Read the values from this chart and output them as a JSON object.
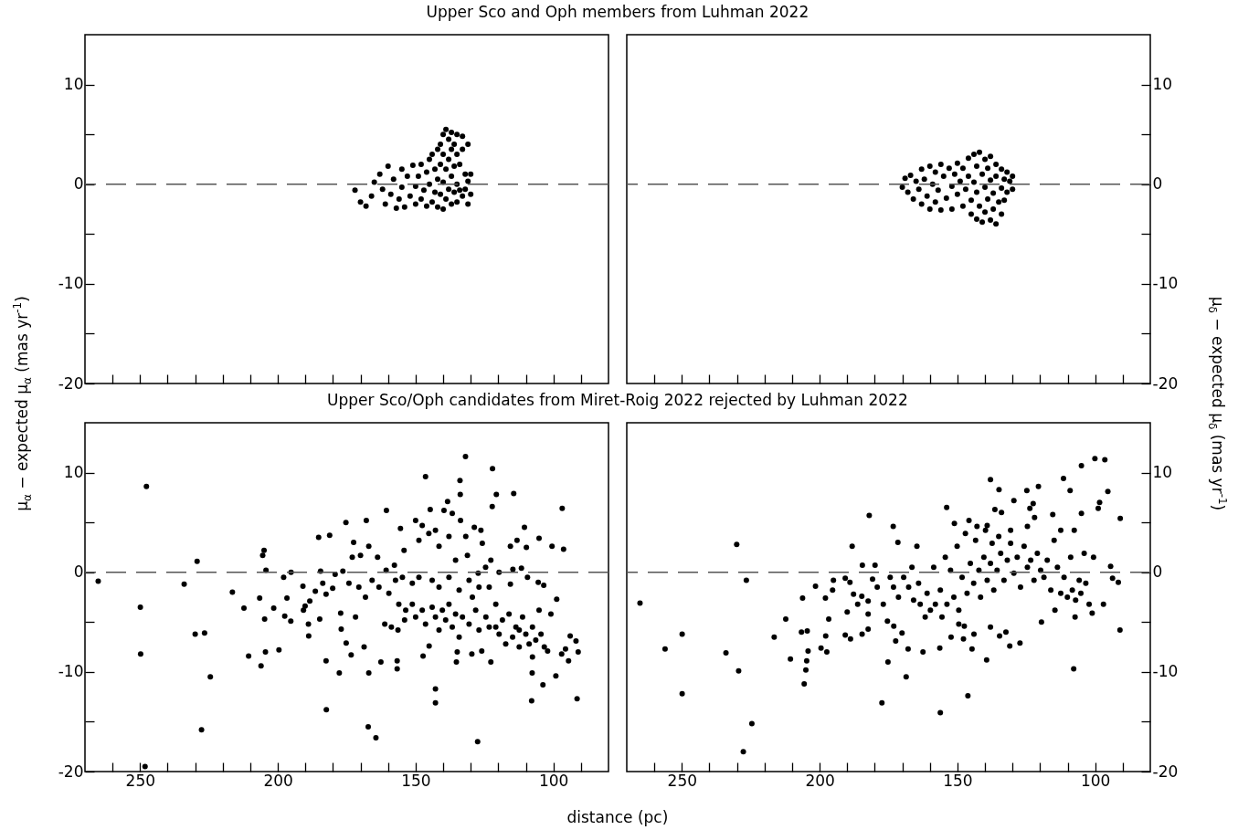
{
  "chart_data": [
    {
      "type": "scatter",
      "title": "Upper Sco and Oph members from Luhman 2022",
      "ylabel": "μ$_{α}$ − expected μ$_{α}$ (mas yr$^{-1}$)",
      "xlim": [
        270,
        80
      ],
      "ylim": [
        -20,
        15
      ],
      "xticks": [
        {
          "value": 260,
          "label": null
        },
        250,
        {
          "value": 240,
          "label": null
        },
        {
          "value": 230,
          "label": null
        },
        {
          "value": 220,
          "label": null
        },
        {
          "value": 210,
          "label": null
        },
        200,
        {
          "value": 190,
          "label": null
        },
        {
          "value": 180,
          "label": null
        },
        {
          "value": 170,
          "label": null
        },
        {
          "value": 160,
          "label": null
        },
        150,
        {
          "value": 140,
          "label": null
        },
        {
          "value": 130,
          "label": null
        },
        {
          "value": 120,
          "label": null
        },
        {
          "value": 110,
          "label": null
        },
        100,
        {
          "value": 90,
          "label": null
        }
      ],
      "yticks": [
        -20,
        {
          "value": -15,
          "label": null
        },
        -10,
        {
          "value": -5,
          "label": null
        },
        0,
        {
          "value": 5,
          "label": null
        },
        10
      ],
      "tick_labels": "y",
      "marker": "circle",
      "ref_lines": [
        {
          "axis": "y",
          "value": 0,
          "line_style": "dashed",
          "color": "#555555"
        }
      ],
      "series": [
        {
          "color": "#000000",
          "x": [
            172,
            170,
            168,
            166,
            165,
            163,
            162,
            161,
            160,
            159,
            158,
            157,
            156,
            155,
            155,
            154,
            153,
            152,
            151,
            150,
            150,
            149,
            148,
            148,
            147,
            146,
            146,
            145,
            145,
            144,
            144,
            143,
            143,
            142,
            142,
            142,
            141,
            141,
            141,
            140,
            140,
            140,
            140,
            139,
            139,
            139,
            138,
            138,
            138,
            137,
            137,
            137,
            137,
            136,
            136,
            136,
            135,
            135,
            135,
            135,
            134,
            134,
            133,
            133,
            132,
            132,
            131,
            131,
            130,
            130,
            131,
            133
          ],
          "values": [
            -0.6,
            -1.8,
            -2.2,
            -1.2,
            0.2,
            1,
            -0.5,
            -2,
            1.8,
            -1,
            0.5,
            -2.4,
            -1.5,
            1.5,
            -0.3,
            -2.3,
            0.8,
            -1.2,
            1.9,
            -0.2,
            -2,
            0.8,
            2,
            -1.5,
            -0.6,
            1.2,
            -2.2,
            2.5,
            0,
            3,
            -1.8,
            1.5,
            -0.8,
            3.5,
            0.5,
            -2.3,
            4,
            2,
            -1,
            5,
            3,
            0.2,
            -2.5,
            5.5,
            1.5,
            -1.5,
            4.5,
            2.5,
            -0.5,
            5.2,
            3.5,
            0.8,
            -2,
            4,
            1.8,
            -0.8,
            5,
            3,
            0,
            -1.8,
            2,
            -0.6,
            3.5,
            -1.2,
            1,
            -0.5,
            0.3,
            4,
            1,
            -1,
            -2,
            4.8
          ]
        }
      ]
    },
    {
      "type": "scatter",
      "ylabel": "μ$_{δ}$ − expected μ$_{δ}$ (mas yr$^{-1}$)",
      "xlim": [
        270,
        80
      ],
      "ylim": [
        -20,
        15
      ],
      "xticks": [
        {
          "value": 260,
          "label": null
        },
        250,
        {
          "value": 240,
          "label": null
        },
        {
          "value": 230,
          "label": null
        },
        {
          "value": 220,
          "label": null
        },
        {
          "value": 210,
          "label": null
        },
        200,
        {
          "value": 190,
          "label": null
        },
        {
          "value": 180,
          "label": null
        },
        {
          "value": 170,
          "label": null
        },
        {
          "value": 160,
          "label": null
        },
        150,
        {
          "value": 140,
          "label": null
        },
        {
          "value": 130,
          "label": null
        },
        {
          "value": 120,
          "label": null
        },
        {
          "value": 110,
          "label": null
        },
        100,
        {
          "value": 90,
          "label": null
        }
      ],
      "yticks": [
        -20,
        {
          "value": -15,
          "label": null
        },
        -10,
        {
          "value": -5,
          "label": null
        },
        0,
        {
          "value": 5,
          "label": null
        },
        10
      ],
      "tick_labels": "y",
      "marker": "circle",
      "ref_lines": [
        {
          "axis": "y",
          "value": 0,
          "line_style": "dashed",
          "color": "#555555"
        }
      ],
      "series": [
        {
          "color": "#000000",
          "x": [
            170,
            169,
            168,
            167,
            166,
            165,
            164,
            163,
            163,
            162,
            161,
            160,
            160,
            159,
            158,
            158,
            157,
            156,
            156,
            155,
            154,
            153,
            152,
            152,
            151,
            150,
            150,
            149,
            148,
            148,
            147,
            146,
            146,
            145,
            145,
            144,
            144,
            143,
            143,
            143,
            142,
            142,
            141,
            141,
            140,
            140,
            140,
            139,
            139,
            138,
            138,
            138,
            137,
            137,
            136,
            136,
            136,
            135,
            134,
            134,
            134,
            133,
            133,
            132,
            132,
            131,
            130,
            130
          ],
          "values": [
            -0.3,
            0.6,
            -0.8,
            0.9,
            -1.5,
            0.3,
            -0.5,
            1.5,
            -2,
            0.5,
            -1.2,
            1.8,
            -2.5,
            0,
            1.2,
            -1.8,
            -0.6,
            2,
            -2.6,
            0.8,
            -1.4,
            1.6,
            -0.2,
            -2.5,
            1,
            2.1,
            -1,
            0.3,
            -2.2,
            1.6,
            -0.5,
            2.6,
            0.8,
            -1.6,
            -3,
            3,
            0.2,
            1.8,
            -0.8,
            -3.5,
            3.2,
            -2.2,
            1,
            -3.8,
            2.5,
            -0.3,
            -2.8,
            1.6,
            -1.5,
            2.8,
            0.4,
            -3.6,
            -0.9,
            -2.5,
            2,
            0.8,
            -4,
            -1.8,
            1.5,
            -0.4,
            -3,
            0.5,
            -1.6,
            1.2,
            -0.8,
            0.3,
            0.8,
            -0.5
          ]
        }
      ]
    },
    {
      "type": "scatter",
      "title": "Upper Sco/Oph candidates from Miret-Roig 2022 rejected by Luhman 2022",
      "xlabel": "distance (pc)",
      "xlim": [
        270,
        80
      ],
      "ylim": [
        -20,
        15
      ],
      "xticks": [
        {
          "value": 260,
          "label": null
        },
        250,
        {
          "value": 240,
          "label": null
        },
        {
          "value": 230,
          "label": null
        },
        {
          "value": 220,
          "label": null
        },
        {
          "value": 210,
          "label": null
        },
        200,
        {
          "value": 190,
          "label": null
        },
        {
          "value": 180,
          "label": null
        },
        {
          "value": 170,
          "label": null
        },
        {
          "value": 160,
          "label": null
        },
        150,
        {
          "value": 140,
          "label": null
        },
        {
          "value": 130,
          "label": null
        },
        {
          "value": 120,
          "label": null
        },
        {
          "value": 110,
          "label": null
        },
        100,
        {
          "value": 90,
          "label": null
        }
      ],
      "yticks": [
        -20,
        {
          "value": -15,
          "label": null
        },
        -10,
        {
          "value": -5,
          "label": null
        },
        0,
        {
          "value": 5,
          "label": null
        },
        10
      ],
      "marker": "circle",
      "ref_lines": [
        {
          "axis": "y",
          "value": 0,
          "line_style": "dashed",
          "color": "#555555"
        }
      ],
      "series": [
        {
          "color": "#000000",
          "x": [
            265.2,
            247.7,
            249.9,
            249.8,
            248.2,
            229.3,
            234,
            230,
            226.6,
            224.5,
            227.7,
            216.5,
            212.3,
            210.6,
            206.6,
            206.1,
            205.5,
            205,
            204.3,
            204.8,
            204.5,
            201.5,
            199.6,
            197.9,
            197.5,
            196.7,
            195.3,
            195.2,
            190.9,
            190.7,
            190.1,
            188.9,
            188.8,
            188.4,
            186.4,
            185.2,
            184.8,
            184.5,
            183.7,
            182.5,
            182.5,
            182.4,
            181.2,
            180.1,
            179.2,
            177.7,
            177.2,
            177,
            176.4,
            175.3,
            175.2,
            173.4,
            172.5,
            171.8,
            168.7,
            167.9,
            167.2,
            167,
            164.4,
            162.6,
            160.6,
            156.7,
            156.7,
            146.4,
            144.7,
            142.8,
            142.8,
            138.4,
            133.9,
            133.8,
            131.9,
            127.5,
            122.1,
            120.7,
            122.2,
            114.4,
            110.5,
            115.6,
            113.2,
            109.8,
            105.2,
            100.5,
            96.8,
            96.3,
            98.8,
            93.9,
            91.8,
            91,
            97,
            95.6,
            94.5,
            91.4,
            99.1,
            103.8,
            107.7,
            107.9,
            135.2,
            134.9,
            129.6,
            126,
            122.7,
            147.3,
            145.1,
            173,
            170,
            167,
            163.8,
            160.7,
            157.7,
            155.5,
            154.2,
            150,
            148.8,
            147.6,
            145.2,
            142.8,
            141.5,
            139.7,
            137.9,
            136.7,
            135.5,
            133.7,
            131.8,
            131.2,
            128.7,
            126.3,
            125.8,
            127.3,
            124.6,
            122.7,
            119.7,
            114.7,
            111.6,
            109.4,
            105.5,
            103.5,
            115.6,
            174.2,
            170.6,
            168.2,
            165.8,
            163.3,
            159.7,
            157.3,
            154.8,
            151.2,
            148.8,
            144,
            141.5,
            137.9,
            134.2,
            130.6,
            127,
            123.3,
            129.4,
            156.1,
            153.6,
            151.2,
            150,
            147.6,
            146.4,
            144,
            142.8,
            141.5,
            140.3,
            139.1,
            137.9,
            136.7,
            135.5,
            134.2,
            133,
            130.6,
            128.2,
            127,
            124.5,
            123.3,
            120.9,
            119.7,
            118.5,
            117.3,
            116.1,
            114.8,
            113.6,
            112.4,
            111.2,
            110,
            108.8,
            107.6,
            106.4,
            105.2,
            104.5,
            103.3,
            102.1,
            100.9,
            107.6,
            112.4,
            120.9,
            161.2,
            158.8,
            156.4,
            154
          ],
          "values": [
            -0.9,
            8.6,
            -3.5,
            -8.2,
            -19.5,
            1.1,
            -1.2,
            -6.2,
            -6.1,
            -10.5,
            -15.8,
            -2,
            -3.6,
            -8.4,
            -2.6,
            -9.4,
            1.7,
            2.2,
            0.2,
            -4.7,
            -8,
            -3.6,
            -7.8,
            -0.5,
            -4.4,
            -2.6,
            -4.9,
            0,
            -1.4,
            -3.8,
            -3.4,
            -5.2,
            -6.4,
            -2.9,
            -1.9,
            3.5,
            -4.7,
            0.1,
            -1.1,
            -2.2,
            -8.9,
            -13.8,
            3.7,
            -1.6,
            -0.2,
            -10.1,
            -4.1,
            -5.7,
            0.1,
            5,
            -7.1,
            -8.3,
            3,
            -4.5,
            -7.5,
            5.2,
            -15.5,
            -10.1,
            -16.6,
            -9,
            6.2,
            -8.9,
            -9.7,
            9.6,
            6.3,
            -11.7,
            -13.1,
            7.1,
            9.2,
            7.8,
            11.6,
            -17,
            10.4,
            7.8,
            6.6,
            7.9,
            4.5,
            2.6,
            3.2,
            2.5,
            3.4,
            2.6,
            6.4,
            2.3,
            -2.7,
            -6.4,
            -6.9,
            -8,
            -8.2,
            -7.7,
            -8.9,
            -12.7,
            -10.4,
            -11.3,
            -10.1,
            -12.9,
            -9,
            -8,
            -8.2,
            -7.9,
            -9,
            -8.4,
            -7.4,
            1.5,
            1.7,
            2.6,
            1.5,
            0.2,
            0.7,
            4.4,
            2.2,
            5.2,
            3.2,
            4.7,
            3.9,
            4.2,
            2.6,
            6.2,
            3.6,
            5.9,
            1.2,
            5.2,
            3.6,
            1.7,
            4.5,
            4.2,
            2.9,
            -0.1,
            0.5,
            1.2,
            0,
            0.3,
            0.4,
            -0.5,
            -1,
            -1.3,
            -1.2,
            -1.1,
            -1.5,
            -2.5,
            -0.8,
            -1.5,
            -2.1,
            -0.8,
            -0.5,
            -1.1,
            -0.5,
            -0.8,
            -1.5,
            -0.5,
            -1.8,
            -0.8,
            -1.5,
            -1.5,
            -2.5,
            -3.2,
            -3.8,
            -3.2,
            -4.5,
            -3.8,
            -5.2,
            -3.5,
            -4.5,
            -5.8,
            -3.8,
            -4.8,
            -3.2,
            -5.5,
            -4.2,
            -6.5,
            -4.5,
            -5.2,
            -3.8,
            -5.8,
            -4.5,
            -5.5,
            -3.2,
            -6.2,
            -4.8,
            -7.2,
            -4.2,
            -6.5,
            -5.5,
            -7.5,
            -4.5,
            -6.2,
            -7.2,
            -5.5,
            -6.8,
            -3.8,
            -6.2,
            -7.5,
            -7.9,
            -4.2,
            -8.5,
            -5.8,
            -5.5,
            -5.2,
            -5.5,
            -5.8,
            -4.8
          ]
        }
      ]
    },
    {
      "type": "scatter",
      "xlim": [
        270,
        80
      ],
      "ylim": [
        -20,
        15
      ],
      "xticks": [
        {
          "value": 260,
          "label": null
        },
        250,
        {
          "value": 240,
          "label": null
        },
        {
          "value": 230,
          "label": null
        },
        {
          "value": 220,
          "label": null
        },
        {
          "value": 210,
          "label": null
        },
        200,
        {
          "value": 190,
          "label": null
        },
        {
          "value": 180,
          "label": null
        },
        {
          "value": 170,
          "label": null
        },
        {
          "value": 160,
          "label": null
        },
        150,
        {
          "value": 140,
          "label": null
        },
        {
          "value": 130,
          "label": null
        },
        {
          "value": 120,
          "label": null
        },
        {
          "value": 110,
          "label": null
        },
        100,
        {
          "value": 90,
          "label": null
        }
      ],
      "yticks": [
        -20,
        {
          "value": -15,
          "label": null
        },
        -10,
        {
          "value": -5,
          "label": null
        },
        0,
        {
          "value": 5,
          "label": null
        },
        10
      ],
      "marker": "circle",
      "ref_lines": [
        {
          "axis": "y",
          "value": 0,
          "line_style": "dashed",
          "color": "#555555"
        }
      ],
      "series": [
        {
          "color": "#000000",
          "x": [
            265.2,
            256.1,
            249.9,
            249.9,
            230.1,
            226.6,
            229.4,
            234,
            224.6,
            227.7,
            216.5,
            212.3,
            210.6,
            206.2,
            206.6,
            204.5,
            204.2,
            204.7,
            205,
            205.6,
            201.5,
            199.5,
            197.9,
            197.8,
            197.4,
            196.7,
            195.3,
            195,
            190.7,
            190.7,
            190,
            189,
            188.8,
            188.2,
            187.7,
            186.2,
            184.7,
            184.6,
            184.5,
            182.4,
            182.4,
            182.4,
            182,
            180.8,
            179.9,
            179.1,
            177.4,
            176.9,
            175.2,
            175.4,
            173.3,
            173.1,
            172.4,
            171.6,
            170.1,
            168.6,
            167.9,
            164.7,
            162.5,
            156.4,
            156.2,
            153.9,
            151.1,
            145.8,
            146.2,
            139.4,
            138,
            134.9,
            136.4,
            134,
            129.5,
            124.8,
            120.6,
            123.7,
            122.5,
            122,
            115.4,
            111.5,
            109.1,
            105,
            100.1,
            96.5,
            95.4,
            98.4,
            98.9,
            105,
            90.9,
            94.4,
            93.7,
            91.6,
            91,
            97,
            101.1,
            107.8,
            107.3,
            119.5,
            114.6,
            131,
            127.3,
            134.7,
            132.4,
            138,
            144,
            144.7,
            147.5,
            147.8,
            149.5,
            152.3,
            174.4,
            173.2,
            171.4,
            169.5,
            167.7,
            166.5,
            165.9,
            164.1,
            163.5,
            161.7,
            161,
            159.8,
            158.6,
            158,
            156.2,
            155.6,
            154.4,
            153.8,
            152.5,
            151.3,
            150.1,
            149.5,
            148.3,
            147.1,
            146.5,
            145.3,
            144.1,
            143.4,
            142.2,
            141.6,
            140.4,
            139.8,
            139.2,
            138,
            137.4,
            136.8,
            135.6,
            135,
            134.3,
            133.1,
            131.9,
            130.7,
            129.5,
            128.3,
            127.1,
            125.8,
            124.6,
            123.4,
            122.2,
            121,
            119.8,
            118.6,
            117.4,
            116.1,
            114.9,
            113.7,
            112.5,
            111.3,
            110.1,
            108.9,
            108.3,
            107.1,
            105.8,
            105.2,
            104,
            103.4,
            102.2,
            100.6,
            107.6,
            112.5,
            124.6,
            130.7,
            139.2,
            142.9
          ],
          "values": [
            -3.1,
            -7.7,
            -6.2,
            -12.2,
            2.8,
            -0.8,
            -9.9,
            -8.1,
            -15.2,
            -18,
            -6.5,
            -4.7,
            -8.7,
            -2.6,
            -6,
            -5.9,
            -7.9,
            -8.9,
            -9.8,
            -11.2,
            -1.4,
            -7.6,
            -2.6,
            -6.4,
            -8,
            -4.7,
            -1.8,
            -0.8,
            -0.6,
            -6.3,
            -4,
            -1,
            -6.7,
            2.6,
            -2.2,
            -3.2,
            -2.4,
            -6.2,
            0.7,
            -2.9,
            -4.2,
            -5.7,
            5.7,
            -0.7,
            0.7,
            -1.5,
            -13.1,
            -3.2,
            -9,
            -4.9,
            4.6,
            -5.4,
            -6.9,
            3,
            -6.1,
            -10.5,
            -7.7,
            2.6,
            -8,
            -7.6,
            -14.1,
            6.5,
            4.9,
            5.2,
            -12.4,
            -8.8,
            9.3,
            8.3,
            6.3,
            6,
            7.2,
            8.2,
            8.6,
            6.4,
            6.9,
            5.5,
            5.8,
            9.4,
            8.2,
            10.7,
            11.4,
            11.3,
            8.1,
            7,
            6.4,
            5.9,
            5.4,
            0.6,
            -0.6,
            -1,
            -5.8,
            -3.2,
            -4.1,
            -9.7,
            -4.5,
            -5,
            -3.8,
            -7.4,
            -7.1,
            -6.4,
            -6,
            -5.5,
            -6.2,
            -7.7,
            -5.4,
            -6.7,
            -5.2,
            -6.5,
            -0.5,
            -1.5,
            -2.5,
            -0.5,
            -1.5,
            0.5,
            -2.8,
            -1.1,
            -3.2,
            -4.5,
            -2.1,
            -3.8,
            0.5,
            -3.2,
            -1.8,
            -4.5,
            1.5,
            -3.2,
            0.2,
            -2.5,
            2.6,
            -3.8,
            -0.5,
            3.9,
            -2.1,
            0.9,
            -1.1,
            3.2,
            0.2,
            -2.5,
            1.5,
            4.2,
            -0.8,
            0.9,
            2.9,
            -1.8,
            0.2,
            3.6,
            1.9,
            -0.8,
            1.2,
            2.9,
            -0.1,
            1.5,
            -1.5,
            2.6,
            0.5,
            1.2,
            -0.8,
            1.9,
            0.2,
            -0.5,
            1.2,
            -1.8,
            3.2,
            0.5,
            -2.1,
            -0.5,
            -2.5,
            1.5,
            -1.8,
            -2.8,
            -0.8,
            -2.1,
            1.9,
            -1.1,
            -3.2,
            1.5,
            4.2,
            4.2,
            4.6,
            4.2,
            4.7,
            4.6
          ]
        }
      ]
    }
  ]
}
